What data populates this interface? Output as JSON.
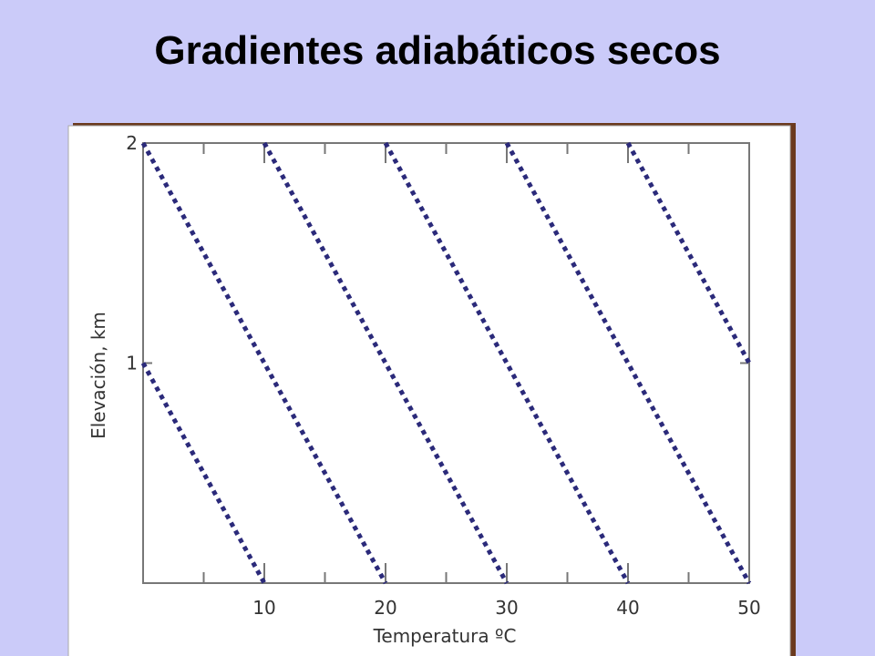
{
  "chart_data": {
    "type": "line",
    "title": "Gradientes adiabáticos secos",
    "xlabel": "Temperatura ºC",
    "ylabel": "Elevación, km",
    "xlim": [
      0,
      50
    ],
    "ylim": [
      0,
      2
    ],
    "xticks": [
      10,
      20,
      30,
      40,
      50
    ],
    "yticks": [
      1,
      2
    ],
    "series": [
      {
        "color": "#2b2a7a",
        "x": [
          0,
          10
        ],
        "values": [
          1,
          0
        ]
      },
      {
        "color": "#2b2a7a",
        "x": [
          0,
          20
        ],
        "values": [
          2,
          0
        ]
      },
      {
        "color": "#2b2a7a",
        "x": [
          10,
          30
        ],
        "values": [
          2,
          0
        ]
      },
      {
        "color": "#2b2a7a",
        "x": [
          20,
          40
        ],
        "values": [
          2,
          0
        ]
      },
      {
        "color": "#2b2a7a",
        "x": [
          30,
          50
        ],
        "values": [
          2,
          0
        ]
      },
      {
        "color": "#2b2a7a",
        "x": [
          40,
          50
        ],
        "values": [
          2,
          1
        ]
      }
    ]
  }
}
